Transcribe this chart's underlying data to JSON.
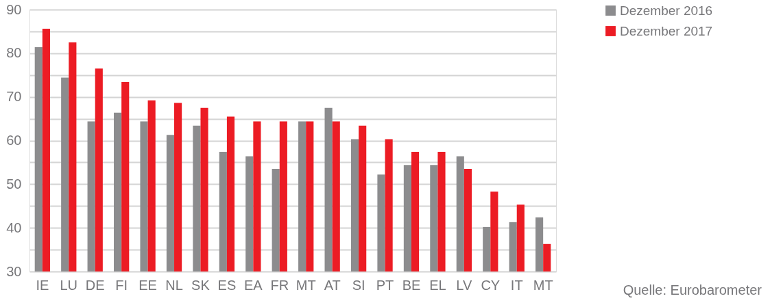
{
  "chart_data": {
    "type": "bar",
    "categories": [
      "IE",
      "LU",
      "DE",
      "FI",
      "EE",
      "NL",
      "SK",
      "ES",
      "EA",
      "FR",
      "MT",
      "AT",
      "SI",
      "PT",
      "BE",
      "EL",
      "LV",
      "CY",
      "IT",
      "MT"
    ],
    "series": [
      {
        "name": "Dezember 2016",
        "color": "#8c8c8e",
        "values": [
          81.4,
          74.4,
          64.4,
          66.4,
          64.4,
          61.3,
          63.4,
          57.4,
          56.4,
          53.5,
          64.4,
          67.5,
          60.3,
          52.2,
          54.4,
          54.4,
          56.4,
          40.2,
          41.3,
          42.4
        ]
      },
      {
        "name": "Dezember 2017",
        "color": "#ec1c24",
        "values": [
          85.6,
          82.5,
          76.5,
          73.4,
          69.2,
          68.6,
          67.5,
          65.5,
          64.4,
          64.4,
          64.4,
          64.4,
          63.4,
          60.3,
          57.4,
          57.4,
          53.5,
          48.3,
          45.3,
          36.3
        ]
      }
    ],
    "ylim": [
      30,
      90
    ],
    "yticks": [
      30,
      {
        "value": 35,
        "label": null
      },
      40,
      {
        "value": 45,
        "label": null
      },
      50,
      {
        "value": 55,
        "label": null
      },
      60,
      {
        "value": 65,
        "label": null
      },
      70,
      {
        "value": 75,
        "label": null
      },
      80,
      {
        "value": 85,
        "label": null
      },
      90
    ],
    "grid": "y",
    "legend": "top right",
    "annotations": [
      "Quelle: Eurobarometer"
    ]
  }
}
